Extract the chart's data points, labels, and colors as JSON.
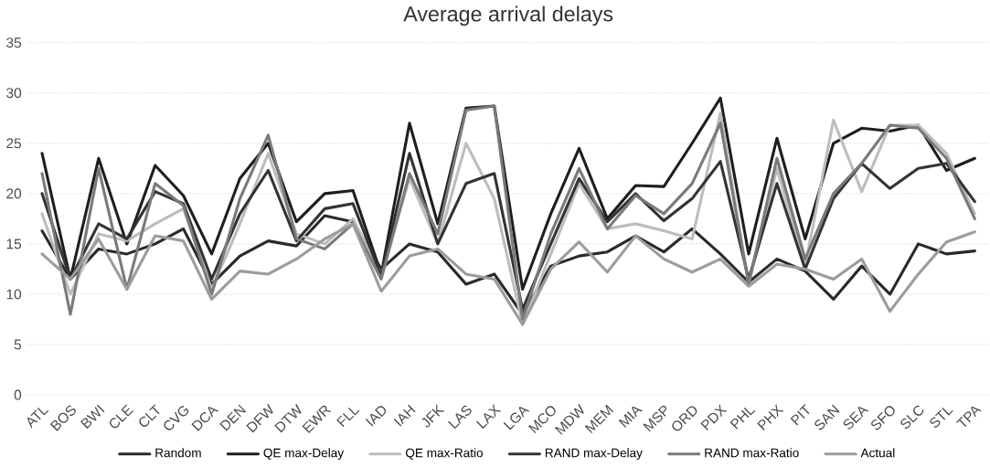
{
  "chart_data": {
    "type": "line",
    "title": "Average arrival delays",
    "categories": [
      "ATL",
      "BOS",
      "BWI",
      "CLE",
      "CLT",
      "CVG",
      "DCA",
      "DEN",
      "DFW",
      "DTW",
      "EWR",
      "FLL",
      "IAD",
      "IAH",
      "JFK",
      "LAS",
      "LAX",
      "LGA",
      "MCO",
      "MDW",
      "MEM",
      "MIA",
      "MSP",
      "ORD",
      "PDX",
      "PHL",
      "PHX",
      "PIT",
      "SAN",
      "SEA",
      "SFO",
      "SLC",
      "STL",
      "TPA"
    ],
    "series": [
      {
        "name": "Random",
        "color": "#2a2a2a",
        "values": [
          16.3,
          11.5,
          14.5,
          14,
          15,
          16.5,
          11,
          13.8,
          15.3,
          14.8,
          17.8,
          17.2,
          12.5,
          15,
          14.2,
          11,
          12,
          8,
          12.8,
          13.8,
          14.2,
          15.8,
          14.2,
          16.5,
          14,
          11.2,
          13.5,
          12.3,
          9.5,
          12.8,
          10,
          15,
          14,
          14.3
        ]
      },
      {
        "name": "QE max-Delay",
        "color": "#1e1e1e",
        "values": [
          24,
          11.5,
          23.5,
          15,
          22.8,
          19.8,
          14,
          21.5,
          25,
          17.2,
          20,
          20.3,
          12,
          27,
          17,
          28.5,
          28.7,
          10.5,
          18,
          24.5,
          17.5,
          20.8,
          20.7,
          25,
          29.5,
          14,
          25.5,
          15.5,
          25,
          26.5,
          26.2,
          26.8,
          22.3,
          23.5
        ]
      },
      {
        "name": "QE max-Ratio",
        "color": "#bdbdbd",
        "values": [
          18,
          10,
          16,
          15.3,
          17,
          18.5,
          10.5,
          17,
          24,
          16,
          15,
          17.5,
          12,
          21.5,
          15,
          25,
          19.5,
          7,
          14,
          21,
          16.5,
          17,
          16.3,
          15.5,
          28,
          11,
          22.5,
          12.8,
          27.3,
          20.2,
          26.8,
          26.8,
          24,
          18
        ]
      },
      {
        "name": "RAND max-Delay",
        "color": "#333333",
        "values": [
          20,
          11.5,
          17,
          15.5,
          20.2,
          19,
          11.5,
          18,
          22.3,
          15.3,
          18.5,
          19,
          11.8,
          24,
          15,
          21,
          22,
          8.5,
          15,
          21.5,
          17.2,
          20,
          17.3,
          19.5,
          23.2,
          11.5,
          21,
          12.5,
          19.5,
          23,
          20.5,
          22.5,
          23,
          19.2
        ]
      },
      {
        "name": "RAND max-Ratio",
        "color": "#7a7a7a",
        "values": [
          22,
          8,
          22.5,
          10.5,
          21,
          18.8,
          10,
          19.5,
          25.8,
          15.5,
          14.5,
          17,
          11.5,
          22,
          16,
          28.3,
          28.7,
          7.5,
          16,
          22.5,
          16.5,
          19.8,
          18,
          21,
          27,
          11,
          23.5,
          13.5,
          20,
          23,
          26.8,
          26.5,
          23.5,
          17.5
        ]
      },
      {
        "name": "Actual",
        "color": "#9c9c9c",
        "values": [
          14,
          11.5,
          15.5,
          10.5,
          15.8,
          15.3,
          9.5,
          12.3,
          12,
          13.5,
          15.5,
          17,
          10.3,
          13.8,
          14.5,
          12,
          11.5,
          7,
          12.5,
          15.2,
          12.2,
          15.8,
          13.5,
          12.2,
          13.5,
          10.8,
          13,
          12.5,
          11.5,
          13.5,
          8.3,
          12,
          15.2,
          16.2
        ]
      }
    ],
    "ylim": [
      0,
      35
    ],
    "yticks": [
      0,
      5,
      10,
      15,
      20,
      25,
      30,
      35
    ],
    "grid": "y",
    "legend": "bottom"
  }
}
